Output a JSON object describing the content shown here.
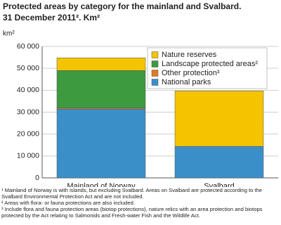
{
  "chart_data": {
    "type": "stacked_bar",
    "title_lines": [
      "Protected areas by category for the mainland and Svalbard.",
      "31 December 2011². Km²"
    ],
    "y_label": "km²",
    "categories": [
      "Mainland of Norway",
      "Svalbard"
    ],
    "series": [
      {
        "name": "National parks",
        "color": "#3a8fc9",
        "values": [
          31400,
          14400
        ]
      },
      {
        "name": "Other protection³",
        "color": "#e07b22",
        "values": [
          500,
          0
        ]
      },
      {
        "name": "Landscape protected areas²",
        "color": "#3e9a3e",
        "values": [
          17100,
          0
        ]
      },
      {
        "name": "Nature reserves",
        "color": "#f5c400",
        "values": [
          5800,
          25300
        ]
      }
    ],
    "ylim": [
      0,
      60000
    ],
    "yticks": [
      0,
      {
        "value": 10000,
        "label": "10 000"
      },
      {
        "value": 20000,
        "label": "20 000"
      },
      {
        "value": 30000,
        "label": "30 000"
      },
      {
        "value": 40000,
        "label": "40 000"
      },
      {
        "value": 50000,
        "label": "50 000"
      },
      {
        "value": 60000,
        "label": "60 000"
      }
    ],
    "grid": true,
    "footnotes": [
      "¹ Mainland of Norway is with islands, but excluding Svalbard. Areas on Svalbard are protected according to the Svalbard Environmental Protection Act and are not included.",
      "² Areas with flora- or fauna protections are also included.",
      "³ Include flora and fauna protection areas (biotop protections), nature relics with an area protection and biotops protected by the Act relating to Salmonids and Fresh-water Fish and the Wildlife Act."
    ]
  }
}
